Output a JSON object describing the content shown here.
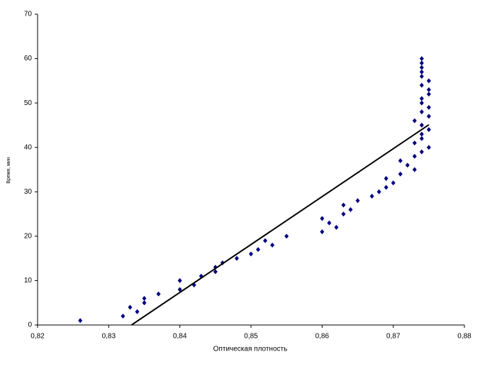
{
  "chart_data": {
    "type": "scatter",
    "x_label": "Оптическая плотность",
    "y_label": "Время, мин",
    "xlim": [
      0.82,
      0.88
    ],
    "xticks": [
      {
        "value": 0.82,
        "label": "0,82"
      },
      {
        "value": 0.83,
        "label": "0,83"
      },
      {
        "value": 0.84,
        "label": "0,84"
      },
      {
        "value": 0.85,
        "label": "0,85"
      },
      {
        "value": 0.86,
        "label": "0,86"
      },
      {
        "value": 0.87,
        "label": "0,87"
      },
      {
        "value": 0.88,
        "label": "0,88"
      }
    ],
    "ylim": [
      0,
      70
    ],
    "yticks": [
      0,
      10,
      20,
      30,
      40,
      50,
      60,
      70
    ],
    "series": [
      {
        "color": "#000080",
        "x": [
          0.826,
          0.832,
          0.833,
          0.834,
          0.835,
          0.835,
          0.837,
          0.84,
          0.84,
          0.842,
          0.843,
          0.845,
          0.845,
          0.846,
          0.848,
          0.85,
          0.851,
          0.852,
          0.853,
          0.855,
          0.86,
          0.86,
          0.861,
          0.862,
          0.863,
          0.863,
          0.864,
          0.865,
          0.867,
          0.868,
          0.869,
          0.869,
          0.87,
          0.871,
          0.871,
          0.872,
          0.873,
          0.873,
          0.873,
          0.873,
          0.874,
          0.874,
          0.874,
          0.874,
          0.874,
          0.874,
          0.874,
          0.874,
          0.874,
          0.874,
          0.874,
          0.874,
          0.874,
          0.875,
          0.875,
          0.875,
          0.875,
          0.875,
          0.875,
          0.875
        ],
        "values": [
          1,
          2,
          4,
          3,
          6,
          5,
          7,
          10,
          8,
          9,
          11,
          13,
          12,
          14,
          15,
          16,
          17,
          19,
          18,
          20,
          24,
          21,
          23,
          22,
          27,
          25,
          26,
          28,
          29,
          30,
          33,
          31,
          32,
          34,
          37,
          36,
          35,
          38,
          41,
          46,
          60,
          59,
          58,
          57,
          56,
          54,
          51,
          50,
          48,
          45,
          43,
          42,
          39,
          55,
          53,
          52,
          49,
          47,
          44,
          40
        ]
      }
    ],
    "trendline": {
      "color": "#000000",
      "x": [
        0.8332,
        0.875
      ],
      "values": [
        0,
        45.1
      ]
    }
  }
}
